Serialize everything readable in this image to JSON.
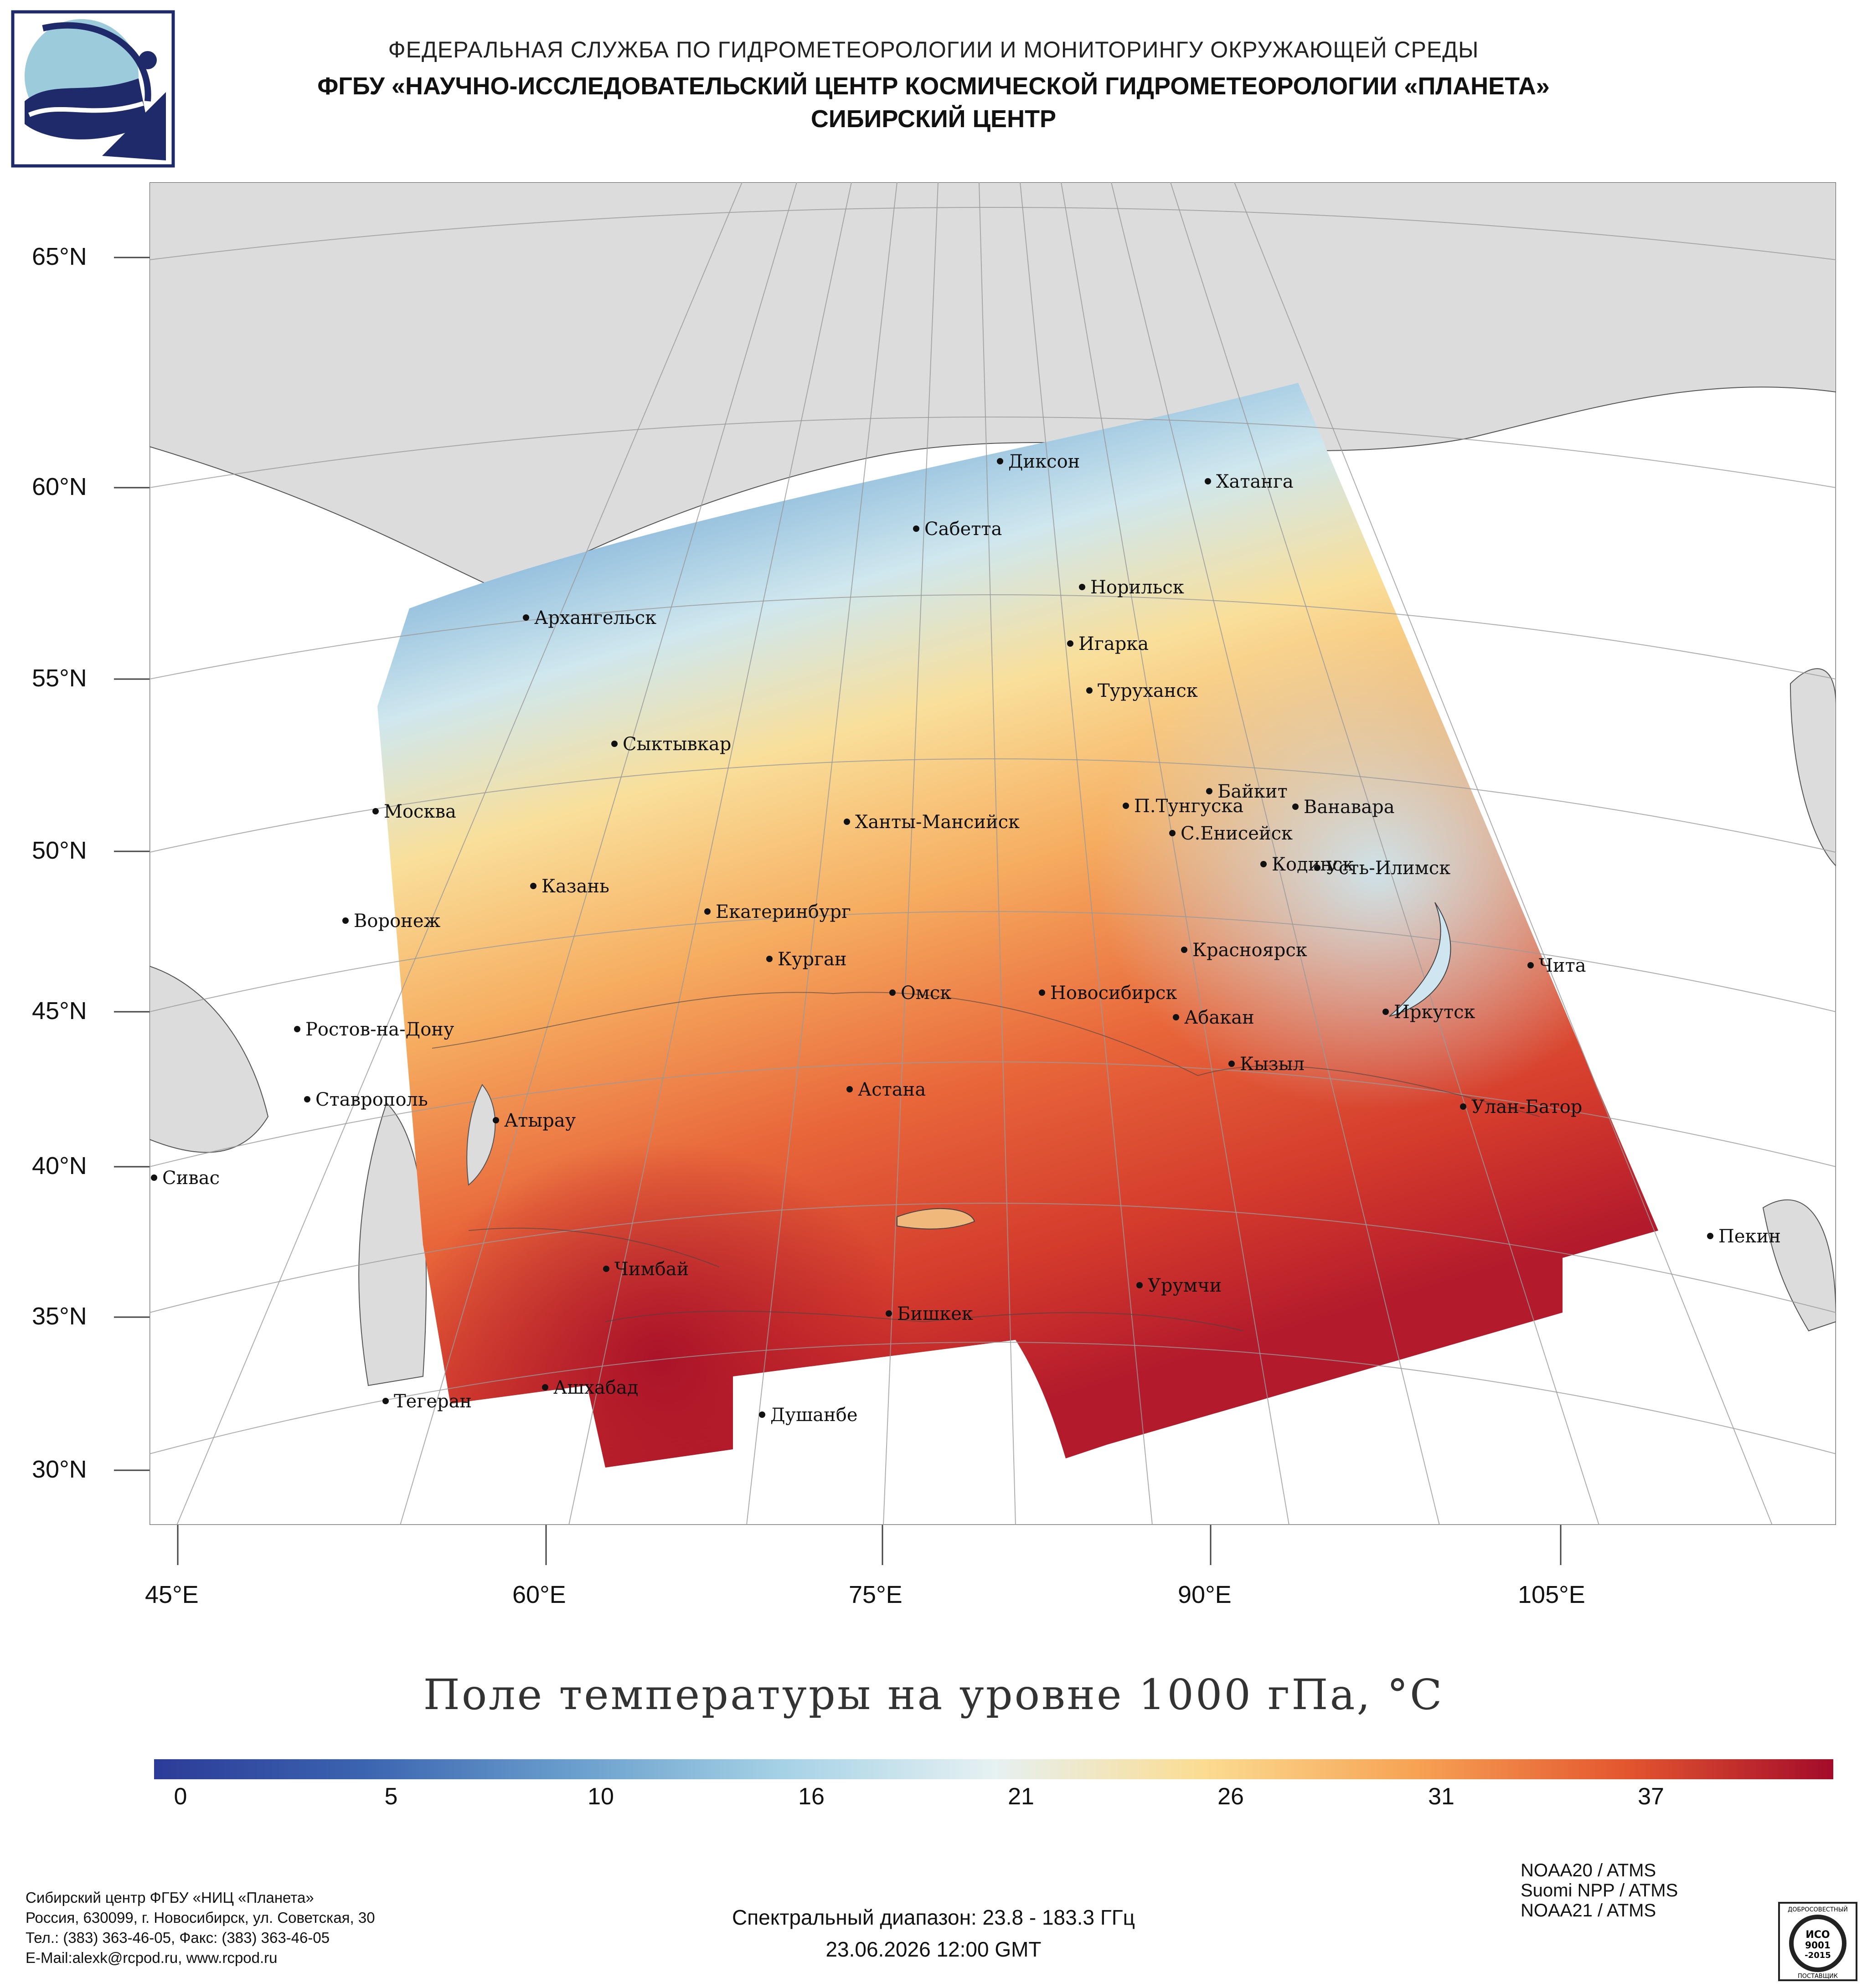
{
  "header": {
    "line1": "ФЕДЕРАЛЬНАЯ СЛУЖБА ПО ГИДРОМЕТЕОРОЛОГИИ И МОНИТОРИНГУ ОКРУЖАЮЩЕЙ СРЕДЫ",
    "line2": "ФГБУ «НАУЧНО-ИССЛЕДОВАТЕЛЬСКИЙ ЦЕНТР КОСМИЧЕСКОЙ ГИДРОМЕТЕОРОЛОГИИ «ПЛАНЕТА»",
    "line3": "СИБИРСКИЙ ЦЕНТР"
  },
  "map": {
    "title": "Поле температуры на уровне 1000 гПа, °C",
    "latitude_labels": [
      "65°N",
      "60°N",
      "55°N",
      "50°N",
      "45°N",
      "40°N",
      "35°N",
      "30°N"
    ],
    "longitude_labels": [
      "45°E",
      "60°E",
      "75°E",
      "90°E",
      "105°E"
    ],
    "cities": [
      {
        "name": "Диксон"
      },
      {
        "name": "Хатанга"
      },
      {
        "name": "Сабетта"
      },
      {
        "name": "Норильск"
      },
      {
        "name": "Архангельск"
      },
      {
        "name": "Игарка"
      },
      {
        "name": "Туруханск"
      },
      {
        "name": "Сыктывкар"
      },
      {
        "name": "Байкит"
      },
      {
        "name": "П.Тунгуска"
      },
      {
        "name": "Ванавара"
      },
      {
        "name": "Москва"
      },
      {
        "name": "Ханты-Мансийск"
      },
      {
        "name": "С.Енисейск"
      },
      {
        "name": "Кодинск"
      },
      {
        "name": "Усть-Илимск"
      },
      {
        "name": "Казань"
      },
      {
        "name": "Екатеринбург"
      },
      {
        "name": "Воронеж"
      },
      {
        "name": "Курган"
      },
      {
        "name": "Красноярск"
      },
      {
        "name": "Чита"
      },
      {
        "name": "Омск"
      },
      {
        "name": "Новосибирск"
      },
      {
        "name": "Иркутск"
      },
      {
        "name": "Ростов-на-Дону"
      },
      {
        "name": "Абакан"
      },
      {
        "name": "Кызыл"
      },
      {
        "name": "Ставрополь"
      },
      {
        "name": "Астана"
      },
      {
        "name": "Улан-Батор"
      },
      {
        "name": "Атырау"
      },
      {
        "name": "Сивас"
      },
      {
        "name": "Пекин"
      },
      {
        "name": "Чимбай"
      },
      {
        "name": "Урумчи"
      },
      {
        "name": "Бишкек"
      },
      {
        "name": "Ашхабад"
      },
      {
        "name": "Тегеран"
      },
      {
        "name": "Душанбе"
      }
    ]
  },
  "colorbar": {
    "ticks": [
      "0",
      "5",
      "10",
      "16",
      "21",
      "26",
      "31",
      "37"
    ],
    "colors": [
      "#2c3b98",
      "#3b64b0",
      "#6a9fcd",
      "#a6d2e6",
      "#e6f1f2",
      "#fbdc91",
      "#f7a354",
      "#e4572f",
      "#a30b2a"
    ]
  },
  "footer": {
    "org_lines": [
      "Сибирский центр ФГБУ «НИЦ «Планета»",
      "Россия, 630099, г. Новосибирск, ул. Советская, 30",
      "Тел.: (383) 363-46-05, Факс: (383) 363-46-05",
      "E-Mail:alexk@rcpod.ru, www.rcpod.ru"
    ],
    "spectral": "Спектральный диапазон: 23.8 - 183.3 ГГц",
    "datetime": "23.06.2026 12:00 GMT",
    "satellites": [
      "NOAA20 / ATMS",
      "Suomi NPP / ATMS",
      "NOAA21 / ATMS"
    ],
    "iso_top": "ДОБРОСОВЕСТНЫЙ",
    "iso_mid1": "ИСО",
    "iso_mid2": "9001",
    "iso_mid3": "-2015",
    "iso_bottom": "ПОСТАВЩИК"
  }
}
